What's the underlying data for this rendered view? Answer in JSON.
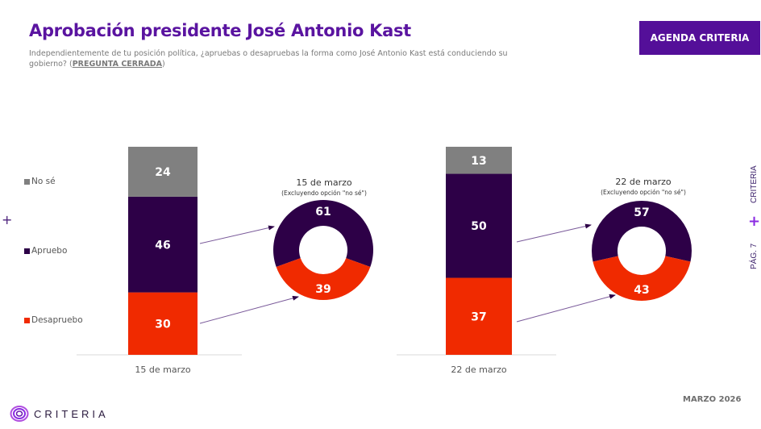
{
  "header": {
    "title": "Aprobación presidente José Antonio Kast",
    "subtitle_main": "Independientemente de tu posición política, ¿apruebas o desapruebas la forma como José Antonio Kast está conduciendo su gobierno? (",
    "subtitle_closed": "PREGUNTA CERRADA",
    "subtitle_end": ")",
    "agenda_button": "AGENDA CRITERIA"
  },
  "legend": [
    {
      "label": "No sé",
      "color": "#808080"
    },
    {
      "label": "Apruebo",
      "color": "#2d0047"
    },
    {
      "label": "Desapruebo",
      "color": "#f02a00"
    }
  ],
  "side": {
    "brand": "CRITERIA",
    "page": "PÁG. 7"
  },
  "footer": {
    "date": "MARZO 2026",
    "logo": "CRITERIA"
  },
  "chart_data": [
    {
      "type": "bar",
      "stacked": true,
      "title": "",
      "categories": [
        "15 de marzo",
        "22 de marzo"
      ],
      "series": [
        {
          "name": "Desapruebo",
          "color": "#f02a00",
          "values": [
            30,
            37
          ]
        },
        {
          "name": "Apruebo",
          "color": "#2d0047",
          "values": [
            46,
            50
          ]
        },
        {
          "name": "No sé",
          "color": "#808080",
          "values": [
            24,
            13
          ]
        }
      ],
      "ylim": [
        0,
        100
      ],
      "legend_position": "left",
      "grid": false
    },
    {
      "type": "pie",
      "donut": true,
      "title": "15 de marzo",
      "subtitle": "(Excluyendo opción \"no sé\")",
      "slices": [
        {
          "name": "Apruebo",
          "value": 61,
          "color": "#2d0047"
        },
        {
          "name": "Desapruebo",
          "value": 39,
          "color": "#f02a00"
        }
      ]
    },
    {
      "type": "pie",
      "donut": true,
      "title": "22 de marzo",
      "subtitle": "(Excluyendo opción \"no sé\")",
      "slices": [
        {
          "name": "Apruebo",
          "value": 57,
          "color": "#2d0047"
        },
        {
          "name": "Desapruebo",
          "value": 43,
          "color": "#f02a00"
        }
      ]
    }
  ]
}
